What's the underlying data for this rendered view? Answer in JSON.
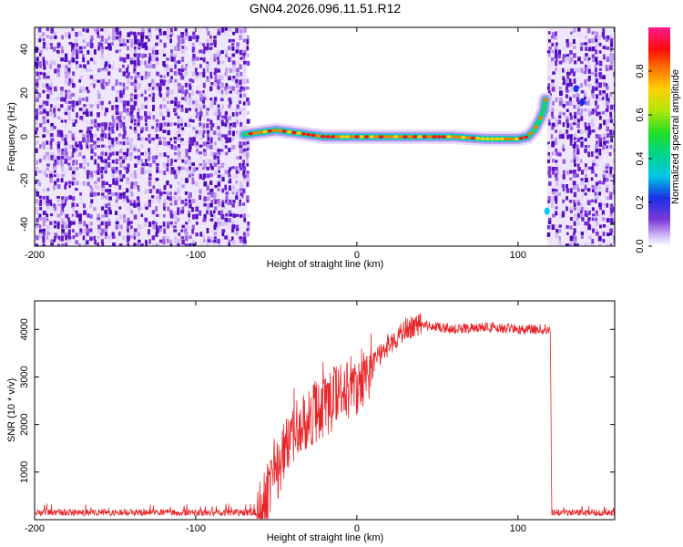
{
  "title": "GN04.2026.096.11.51.R12",
  "chart_data": [
    {
      "type": "heatmap",
      "xlabel": "Height of straight line (km)",
      "ylabel": "Frequency (Hz)",
      "xlim": [
        -200,
        160
      ],
      "ylim": [
        -50,
        50
      ],
      "xticks": [
        -200,
        -100,
        0,
        100
      ],
      "yticks": [
        -40,
        -20,
        0,
        20,
        40
      ],
      "noise_regions_km": [
        [
          -200,
          -68
        ],
        [
          118,
          160
        ]
      ],
      "signal_track": {
        "x": [
          -70,
          -60,
          -50,
          -40,
          -30,
          -20,
          -10,
          0,
          20,
          40,
          60,
          80,
          100,
          106,
          110,
          113,
          116,
          117
        ],
        "y": [
          1,
          2,
          3,
          2,
          1,
          0,
          0,
          0,
          0,
          0,
          0,
          -1,
          -1,
          0,
          3,
          7,
          12,
          17
        ]
      },
      "colorbar": {
        "label": "Normalized spectral amplitude",
        "range": [
          0,
          1
        ],
        "ticks": [
          "0.0",
          "0.2",
          "0.4",
          "0.6",
          "0.8"
        ]
      }
    },
    {
      "type": "line",
      "xlabel": "Height of straight line (km)",
      "ylabel": "SNR (10 * v/v)",
      "xlim": [
        -200,
        160
      ],
      "ylim": [
        0,
        4600
      ],
      "xticks": [
        -200,
        -100,
        0,
        100
      ],
      "yticks": [
        1000,
        2000,
        3000,
        4000
      ],
      "series": [
        {
          "name": "SNR",
          "color": "#e8262a",
          "x": [
            -200,
            -60,
            -50,
            -40,
            -30,
            -20,
            -10,
            0,
            10,
            20,
            30,
            40,
            50,
            60,
            80,
            100,
            120,
            121,
            160
          ],
          "y": [
            150,
            150,
            1000,
            1700,
            2200,
            2300,
            2700,
            2800,
            3300,
            3700,
            4000,
            4100,
            4050,
            4000,
            4050,
            4000,
            4000,
            150,
            150
          ]
        }
      ]
    }
  ],
  "colors": {
    "signal_line": "#e8262a",
    "noise_purple": "#6a1fd0"
  }
}
